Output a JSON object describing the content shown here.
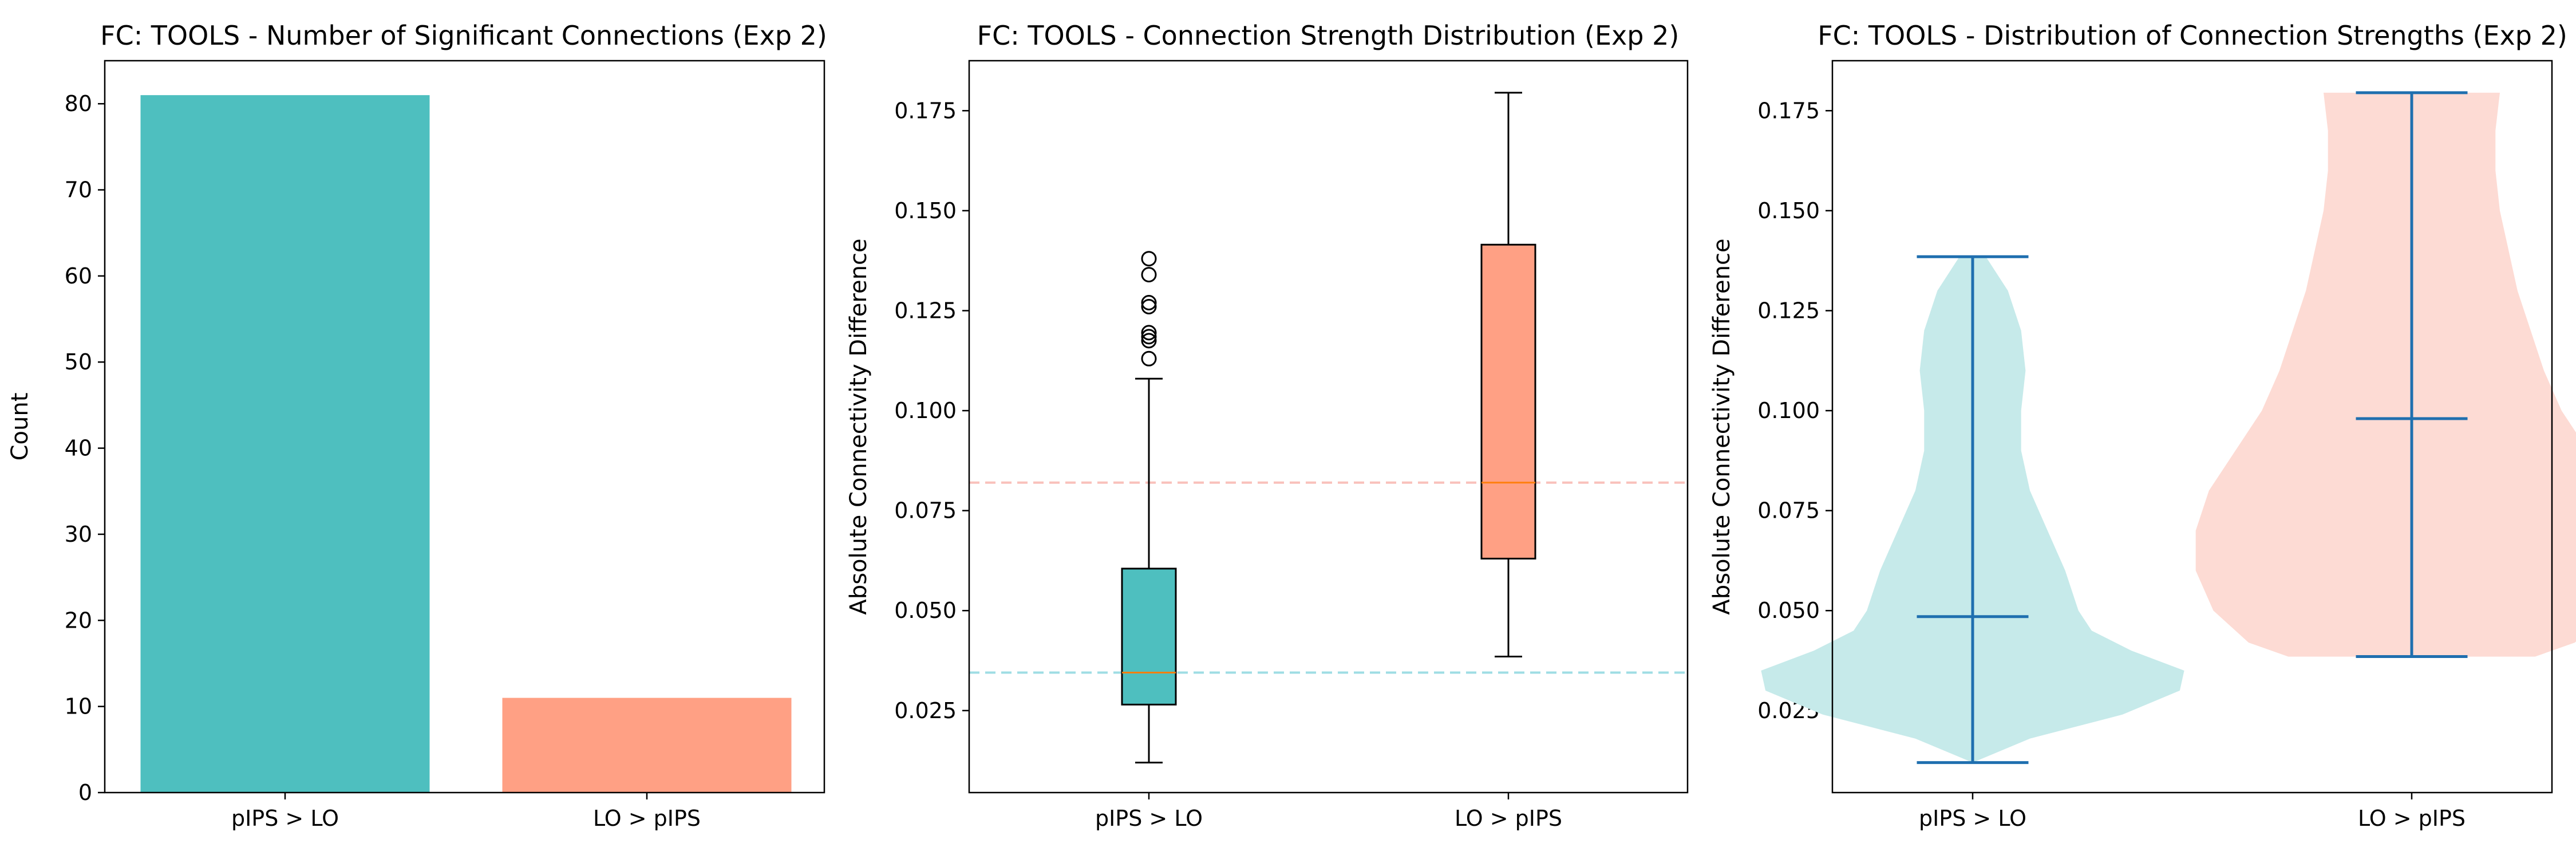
{
  "colors": {
    "teal": "#4ebfbf",
    "salmon": "#ffa084",
    "teal_light": "#c6eaea",
    "salmon_light": "#fddbd4",
    "median": "#ff7f0e",
    "violin_lines": "#1f6faf",
    "ref_teal": "#9fdde4",
    "ref_salmon": "#f9c1bb"
  },
  "chart_data": [
    {
      "type": "bar",
      "title": "FC: TOOLS - Number of Significant Connections (Exp 2)",
      "ylabel": "Count",
      "xlabel": "",
      "categories": [
        "pIPS > LO",
        "LO > pIPS"
      ],
      "values": [
        81,
        11
      ],
      "ylim": [
        0,
        85
      ],
      "yticks": [
        0,
        10,
        20,
        30,
        40,
        50,
        60,
        70,
        80
      ],
      "grid": false
    },
    {
      "type": "box",
      "title": "FC: TOOLS - Connection Strength Distribution (Exp 2)",
      "ylabel": "Absolute Connectivity Difference",
      "xlabel": "",
      "categories": [
        "pIPS > LO",
        "LO > pIPS"
      ],
      "ylim": [
        0.0045,
        0.1875
      ],
      "yticks": [
        0.025,
        0.05,
        0.075,
        0.1,
        0.125,
        0.15,
        0.175
      ],
      "boxes": [
        {
          "whisker_low": 0.012,
          "q1": 0.0265,
          "median": 0.0345,
          "q3": 0.0605,
          "whisker_high": 0.108,
          "outliers": [
            0.113,
            0.1175,
            0.1185,
            0.1195,
            0.126,
            0.127,
            0.134,
            0.138
          ]
        },
        {
          "whisker_low": 0.0385,
          "q1": 0.063,
          "median": 0.082,
          "q3": 0.1415,
          "whisker_high": 0.1795,
          "outliers": []
        }
      ],
      "reference_lines": [
        0.0345,
        0.082
      ],
      "grid": false
    },
    {
      "type": "violin",
      "title": "FC: TOOLS - Distribution of Connection Strengths (Exp 2)",
      "ylabel": "Absolute Connectivity Difference",
      "xlabel": "",
      "categories": [
        "pIPS > LO",
        "LO > pIPS"
      ],
      "ylim": [
        0.0045,
        0.1875
      ],
      "yticks": [
        0.025,
        0.05,
        0.075,
        0.1,
        0.125,
        0.15,
        0.175
      ],
      "violins": [
        {
          "min": 0.012,
          "mean": 0.0485,
          "max": 0.1385,
          "profile": [
            [
              0.012,
              0.0
            ],
            [
              0.018,
              0.13
            ],
            [
              0.024,
              0.34
            ],
            [
              0.03,
              0.47
            ],
            [
              0.035,
              0.48
            ],
            [
              0.04,
              0.36
            ],
            [
              0.045,
              0.27
            ],
            [
              0.05,
              0.24
            ],
            [
              0.06,
              0.21
            ],
            [
              0.07,
              0.17
            ],
            [
              0.08,
              0.13
            ],
            [
              0.09,
              0.11
            ],
            [
              0.1,
              0.11
            ],
            [
              0.11,
              0.12
            ],
            [
              0.12,
              0.11
            ],
            [
              0.13,
              0.08
            ],
            [
              0.1385,
              0.03
            ]
          ]
        },
        {
          "min": 0.0385,
          "mean": 0.098,
          "max": 0.1795,
          "profile": [
            [
              0.0385,
              0.28
            ],
            [
              0.042,
              0.37
            ],
            [
              0.05,
              0.45
            ],
            [
              0.06,
              0.49
            ],
            [
              0.07,
              0.49
            ],
            [
              0.08,
              0.46
            ],
            [
              0.09,
              0.4
            ],
            [
              0.1,
              0.34
            ],
            [
              0.11,
              0.3
            ],
            [
              0.12,
              0.27
            ],
            [
              0.13,
              0.24
            ],
            [
              0.14,
              0.22
            ],
            [
              0.15,
              0.2
            ],
            [
              0.16,
              0.19
            ],
            [
              0.17,
              0.19
            ],
            [
              0.1795,
              0.2
            ]
          ]
        }
      ],
      "grid": false
    }
  ]
}
